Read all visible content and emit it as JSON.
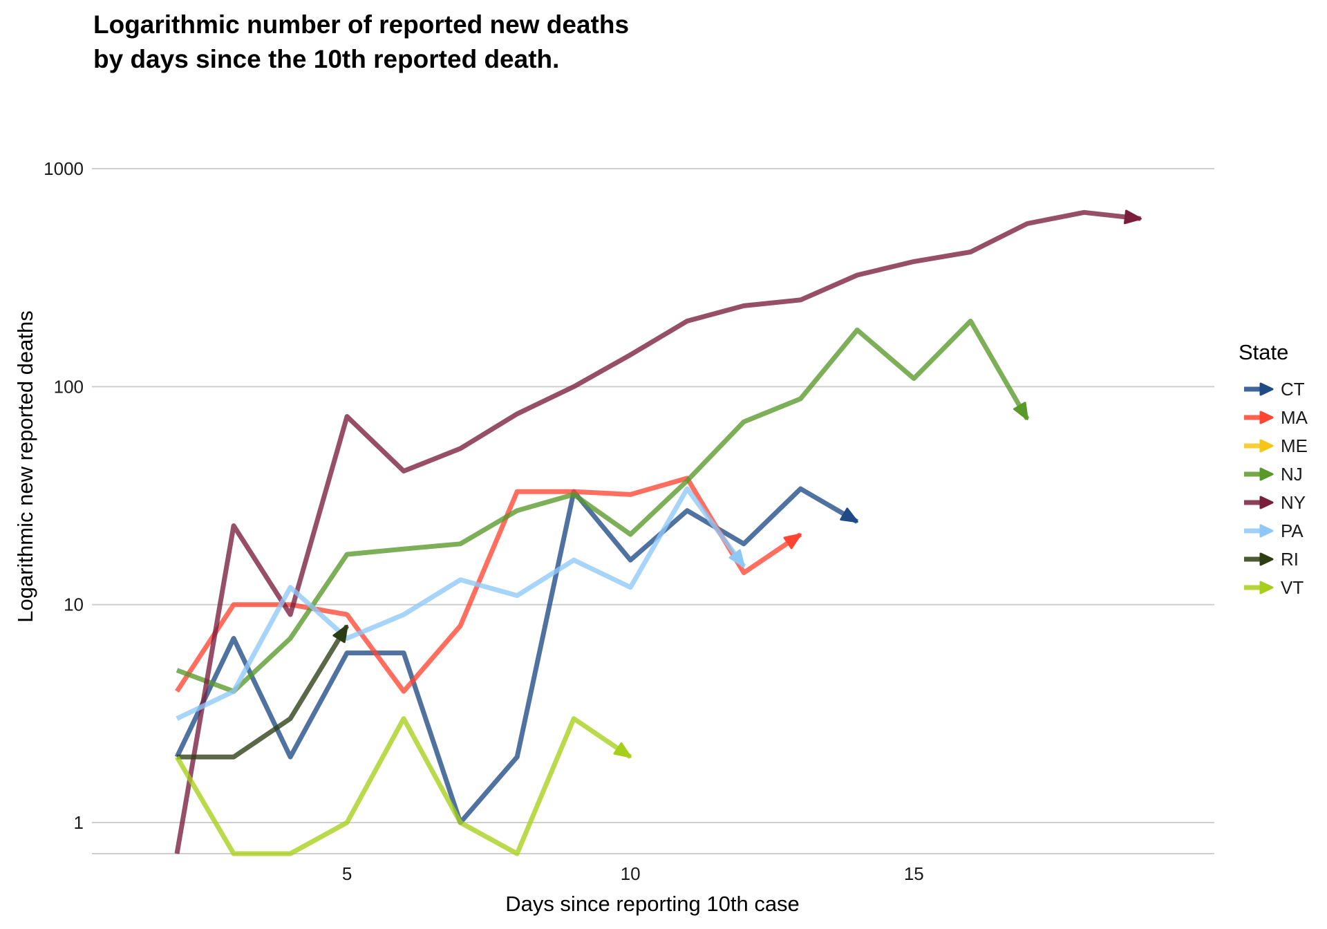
{
  "chart_data": {
    "type": "line",
    "title": [
      "Logarithmic number of reported new deaths",
      "by days since the 10th reported death."
    ],
    "xlabel": "Days since reporting 10th case",
    "ylabel": "Logarithmic new reported deaths",
    "xlim": [
      0.5,
      20.3
    ],
    "ylim": [
      0.72,
      2300
    ],
    "y_scale": "log10",
    "x_ticks": [
      5,
      10,
      15
    ],
    "y_ticks": [
      1,
      10,
      100,
      1000
    ],
    "y_tick_labels": [
      "1",
      "10",
      "100",
      "1000"
    ],
    "grid": "horizontal major",
    "legend_title": "State",
    "legend_position": "right",
    "line_ends": "arrow",
    "series": [
      {
        "name": "CT",
        "color": "#1f4a86",
        "points": [
          [
            2,
            2
          ],
          [
            3,
            7
          ],
          [
            4,
            2
          ],
          [
            5,
            6
          ],
          [
            6,
            6
          ],
          [
            7,
            1
          ],
          [
            8,
            2
          ],
          [
            9,
            33
          ],
          [
            10,
            16
          ],
          [
            11,
            27
          ],
          [
            12,
            19
          ],
          [
            13,
            34
          ],
          [
            14,
            24
          ]
        ]
      },
      {
        "name": "MA",
        "color": "#ff4532",
        "points": [
          [
            2,
            4
          ],
          [
            3,
            10
          ],
          [
            4,
            10
          ],
          [
            5,
            9
          ],
          [
            6,
            4
          ],
          [
            7,
            8
          ],
          [
            8,
            33
          ],
          [
            9,
            33
          ],
          [
            10,
            32
          ],
          [
            11,
            38
          ],
          [
            12,
            14
          ],
          [
            13,
            21
          ]
        ]
      },
      {
        "name": "ME",
        "color": "#f5c518",
        "points": []
      },
      {
        "name": "NJ",
        "color": "#59992a",
        "points": [
          [
            2,
            5
          ],
          [
            3,
            4
          ],
          [
            4,
            7
          ],
          [
            5,
            17
          ],
          [
            6,
            18
          ],
          [
            7,
            19
          ],
          [
            8,
            27
          ],
          [
            9,
            32
          ],
          [
            10,
            21
          ],
          [
            11,
            37
          ],
          [
            12,
            69
          ],
          [
            13,
            88
          ],
          [
            14,
            182
          ],
          [
            15,
            109
          ],
          [
            16,
            200
          ],
          [
            17,
            71
          ]
        ]
      },
      {
        "name": "NY",
        "color": "#7a1e3c",
        "points": [
          [
            2,
            0.72
          ],
          [
            3,
            23
          ],
          [
            4,
            9
          ],
          [
            5,
            73
          ],
          [
            6,
            41
          ],
          [
            7,
            52
          ],
          [
            8,
            75
          ],
          [
            9,
            100
          ],
          [
            10,
            140
          ],
          [
            11,
            200
          ],
          [
            12,
            235
          ],
          [
            13,
            250
          ],
          [
            14,
            325
          ],
          [
            15,
            375
          ],
          [
            16,
            415
          ],
          [
            17,
            560
          ],
          [
            18,
            630
          ],
          [
            19,
            590
          ]
        ]
      },
      {
        "name": "PA",
        "color": "#8ec8f7",
        "points": [
          [
            2,
            3
          ],
          [
            3,
            4
          ],
          [
            4,
            12
          ],
          [
            5,
            7
          ],
          [
            6,
            9
          ],
          [
            7,
            13
          ],
          [
            8,
            11
          ],
          [
            9,
            16
          ],
          [
            10,
            12
          ],
          [
            11,
            34
          ],
          [
            12,
            15
          ]
        ]
      },
      {
        "name": "RI",
        "color": "#2d3d13",
        "points": [
          [
            2,
            2
          ],
          [
            3,
            2
          ],
          [
            4,
            3
          ],
          [
            5,
            8
          ]
        ]
      },
      {
        "name": "VT",
        "color": "#a7cf1a",
        "points": [
          [
            2,
            2
          ],
          [
            3,
            0.72
          ],
          [
            4,
            0.72
          ],
          [
            5,
            1
          ],
          [
            6,
            3
          ],
          [
            7,
            1
          ],
          [
            8,
            0.72
          ],
          [
            9,
            3
          ],
          [
            10,
            2
          ]
        ]
      }
    ]
  }
}
